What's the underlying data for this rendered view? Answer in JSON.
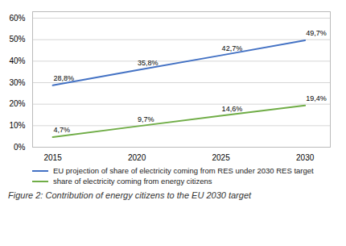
{
  "chart_data": {
    "type": "line",
    "x": [
      2015,
      2020,
      2025,
      2030
    ],
    "series": [
      {
        "name": "EU projection of share of electricity coming from RES under 2030 RES target",
        "color": "#4472C4",
        "values": [
          28.8,
          35.8,
          42.7,
          49.7
        ],
        "value_labels": [
          "28,8%",
          "35,8%",
          "42,7%",
          "49,7%"
        ]
      },
      {
        "name": "share of electricity coming from energy citizens",
        "color": "#70AD47",
        "values": [
          4.7,
          9.7,
          14.6,
          19.4
        ],
        "value_labels": [
          "4,7%",
          "9,7%",
          "14,6%",
          "19,4%"
        ]
      }
    ],
    "xlim": [
      2013.8,
      2031.5
    ],
    "xticks": [
      2015,
      2020,
      2025,
      2030
    ],
    "ylim": [
      0,
      63
    ],
    "yticks": [
      {
        "value": 0,
        "label": "0%"
      },
      {
        "value": 10,
        "label": "10%"
      },
      {
        "value": 20,
        "label": "20%"
      },
      {
        "value": 30,
        "label": "30%"
      },
      {
        "value": 40,
        "label": "40%"
      },
      {
        "value": 50,
        "label": "50%"
      },
      {
        "value": 60,
        "label": "60%"
      }
    ],
    "grid": true,
    "data_labels": true,
    "legend": "bottom",
    "caption": "Figure 2: Contribution of energy citizens to the EU 2030 target"
  }
}
